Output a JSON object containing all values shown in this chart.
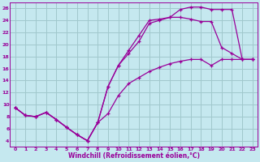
{
  "xlabel": "Windchill (Refroidissement éolien,°C)",
  "xlim": [
    -0.5,
    23.5
  ],
  "ylim": [
    3,
    27
  ],
  "xticks": [
    0,
    1,
    2,
    3,
    4,
    5,
    6,
    7,
    8,
    9,
    10,
    11,
    12,
    13,
    14,
    15,
    16,
    17,
    18,
    19,
    20,
    21,
    22,
    23
  ],
  "yticks": [
    4,
    6,
    8,
    10,
    12,
    14,
    16,
    18,
    20,
    22,
    24,
    26
  ],
  "bg_color": "#c5e8ef",
  "line_color": "#990099",
  "grid_color": "#a0c8cc",
  "lines": [
    {
      "x": [
        0,
        1,
        2,
        3,
        4,
        5,
        6,
        7,
        8,
        9,
        10,
        11,
        12,
        13,
        14,
        15,
        16,
        17,
        18,
        19,
        20,
        21,
        22,
        23
      ],
      "y": [
        9.5,
        8.2,
        8.0,
        8.7,
        7.5,
        6.2,
        5.0,
        4.0,
        7.0,
        13.0,
        16.5,
        19.0,
        21.5,
        24.0,
        24.2,
        24.5,
        25.8,
        26.2,
        26.2,
        25.8,
        25.8,
        25.8,
        17.5,
        17.5
      ]
    },
    {
      "x": [
        0,
        1,
        2,
        3,
        4,
        5,
        6,
        7,
        8,
        9,
        10,
        11,
        12,
        13,
        14,
        15,
        16,
        17,
        18,
        19,
        20,
        21,
        22,
        23
      ],
      "y": [
        9.5,
        8.2,
        8.0,
        8.7,
        7.5,
        6.2,
        5.0,
        4.0,
        7.0,
        13.0,
        16.5,
        18.5,
        20.5,
        23.5,
        24.0,
        24.5,
        24.5,
        24.2,
        23.8,
        23.8,
        19.5,
        18.5,
        17.5,
        17.5
      ]
    },
    {
      "x": [
        0,
        1,
        2,
        3,
        4,
        5,
        6,
        7,
        8,
        9,
        10,
        11,
        12,
        13,
        14,
        15,
        16,
        17,
        18,
        19,
        20,
        21,
        22,
        23
      ],
      "y": [
        9.5,
        8.2,
        8.0,
        8.7,
        7.5,
        6.2,
        5.0,
        4.0,
        7.0,
        8.5,
        11.5,
        13.5,
        14.5,
        15.5,
        16.2,
        16.8,
        17.2,
        17.5,
        17.5,
        16.5,
        17.5,
        17.5,
        17.5,
        17.5
      ]
    }
  ]
}
